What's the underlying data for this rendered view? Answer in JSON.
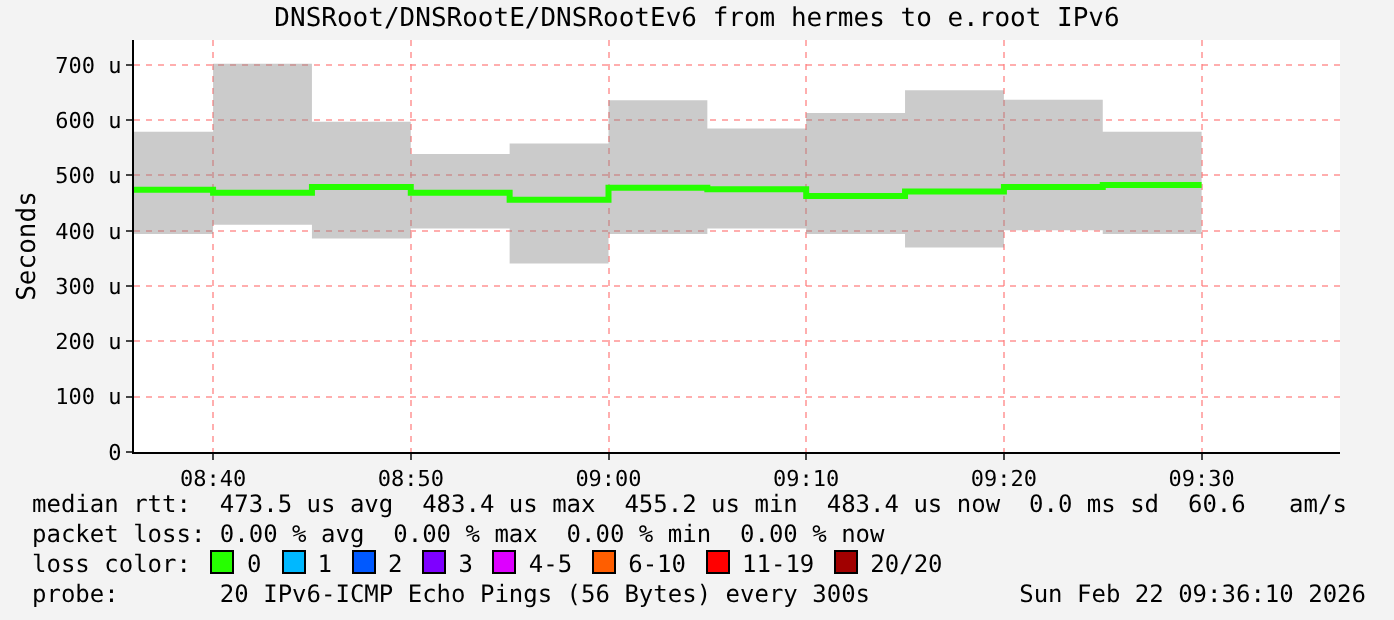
{
  "chart_data": {
    "type": "step",
    "title": "DNSRoot/DNSRootE/DNSRootEv6 from hermes to e.root IPv6",
    "ylabel": "Seconds",
    "legend_title": "loss color:",
    "x": [
      "2026-02-22T08:36",
      "2026-02-22T08:40",
      "2026-02-22T08:45",
      "2026-02-22T08:50",
      "2026-02-22T08:55",
      "2026-02-22T09:00",
      "2026-02-22T09:05",
      "2026-02-22T09:10",
      "2026-02-22T09:15",
      "2026-02-22T09:20",
      "2026-02-22T09:25",
      "2026-02-22T09:30"
    ],
    "series": [
      {
        "name": "0",
        "color": "#26ff00",
        "values": [
          474,
          469,
          479,
          469,
          456,
          478,
          475,
          463,
          471,
          479,
          483,
          483
        ],
        "lower": [
          394,
          411,
          386,
          404,
          341,
          394,
          404,
          394,
          370,
          401,
          394,
          394
        ],
        "upper": [
          579,
          702,
          597,
          539,
          558,
          636,
          585,
          613,
          654,
          637,
          579,
          579
        ]
      },
      {
        "name": "1",
        "color": "#00b8ff",
        "values": [
          null,
          null,
          null,
          null,
          null,
          null,
          null,
          null,
          null,
          null,
          null,
          null
        ]
      },
      {
        "name": "2",
        "color": "#0059ff",
        "values": [
          null,
          null,
          null,
          null,
          null,
          null,
          null,
          null,
          null,
          null,
          null,
          null
        ]
      },
      {
        "name": "3",
        "color": "#7e00ff",
        "values": [
          null,
          null,
          null,
          null,
          null,
          null,
          null,
          null,
          null,
          null,
          null,
          null
        ]
      },
      {
        "name": "4-5",
        "color": "#dd00ff",
        "values": [
          null,
          null,
          null,
          null,
          null,
          null,
          null,
          null,
          null,
          null,
          null,
          null
        ]
      },
      {
        "name": "6-10",
        "color": "#ff5e00",
        "values": [
          null,
          null,
          null,
          null,
          null,
          null,
          null,
          null,
          null,
          null,
          null,
          null
        ]
      },
      {
        "name": "11-19",
        "color": "#ff0000",
        "values": [
          null,
          null,
          null,
          null,
          null,
          null,
          null,
          null,
          null,
          null,
          null,
          null
        ]
      },
      {
        "name": "20/20",
        "color": "#a10000",
        "values": [
          null,
          null,
          null,
          null,
          null,
          null,
          null,
          null,
          null,
          null,
          null,
          null
        ]
      }
    ],
    "xlim": [
      "2026-02-22T08:36",
      "2026-02-22T09:37"
    ],
    "xticks": [
      {
        "value": "2026-02-22T08:40",
        "label": "08:40"
      },
      {
        "value": "2026-02-22T08:50",
        "label": "08:50"
      },
      {
        "value": "2026-02-22T09:00",
        "label": "09:00"
      },
      {
        "value": "2026-02-22T09:10",
        "label": "09:10"
      },
      {
        "value": "2026-02-22T09:20",
        "label": "09:20"
      },
      {
        "value": "2026-02-22T09:30",
        "label": "09:30"
      }
    ],
    "ylim": [
      0,
      745
    ],
    "yticks": [
      0,
      {
        "value": 100,
        "label": "100 u"
      },
      {
        "value": 200,
        "label": "200 u"
      },
      {
        "value": 300,
        "label": "300 u"
      },
      {
        "value": 400,
        "label": "400 u"
      },
      {
        "value": 500,
        "label": "500 u"
      },
      {
        "value": 600,
        "label": "600 u"
      },
      {
        "value": 700,
        "label": "700 u"
      }
    ],
    "grid": true,
    "legend": "bottom",
    "marker": "none",
    "line_style": "solid",
    "annotations": [
      "median rtt:  473.5 us avg  483.4 us max  455.2 us min  483.4 us now  0.0 ms sd  60.6   am/s",
      "packet loss: 0.00 % avg  0.00 % max  0.00 % min  0.00 % now",
      "probe:       20 IPv6-ICMP Echo Pings (56 Bytes) every 300s",
      "Sun Feb 22 09:36:10 2026"
    ]
  }
}
